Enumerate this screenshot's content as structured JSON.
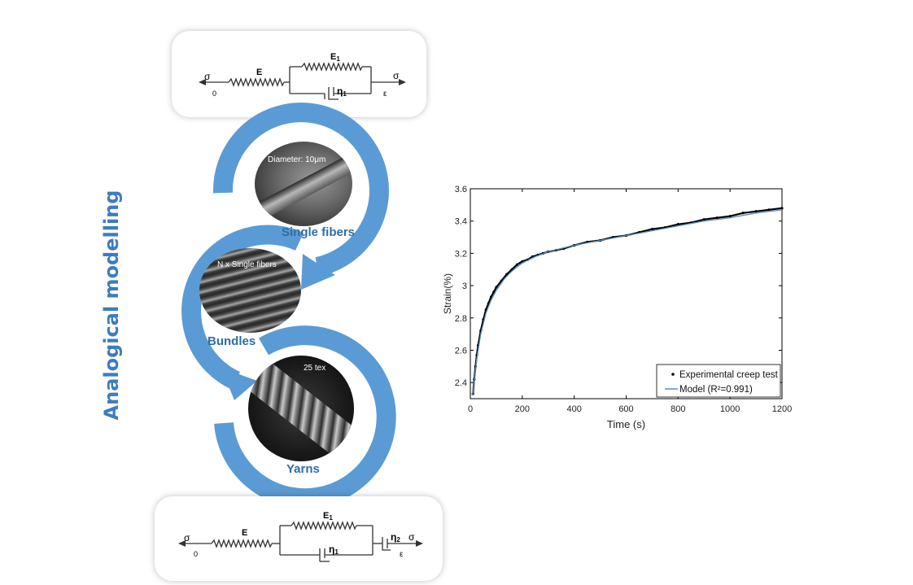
{
  "vertical_title": "Analogical modelling",
  "diagram_top": {
    "sigma_left": "σ",
    "sigma_right": "σ",
    "zero": "0",
    "epsilon": "ε",
    "E": "E",
    "E1": "E",
    "E1_sub": "1",
    "eta1": "η",
    "eta1_sub": "1"
  },
  "diagram_bottom": {
    "sigma_left": "σ",
    "sigma_right": "σ",
    "zero": "0",
    "epsilon": "ε",
    "E": "E",
    "E1": "E",
    "E1_sub": "1",
    "eta1": "η",
    "eta1_sub": "1",
    "eta2": "η",
    "eta2_sub": "2"
  },
  "cycle": {
    "single_fibers": {
      "caption": "Single fibers",
      "image_label": "Diameter: 10μm"
    },
    "bundles": {
      "caption": "Bundles",
      "image_label": "N x Single fibers"
    },
    "yarns": {
      "caption": "Yarns",
      "image_label": "25 tex"
    }
  },
  "colors": {
    "accent": "#5b9bd5",
    "title": "#3d7cc0",
    "caption": "#2e6da8"
  },
  "chart_data": {
    "type": "scatter",
    "xlabel": "Time (s)",
    "ylabel": "Strain(%)",
    "xlim": [
      0,
      1200
    ],
    "ylim": [
      2.3,
      3.6
    ],
    "xticks": [
      0,
      200,
      400,
      600,
      800,
      1000,
      1200
    ],
    "yticks": [
      2.4,
      2.6,
      2.8,
      3,
      3.2,
      3.4,
      3.6
    ],
    "xtick_labels": [
      "0",
      "200",
      "400",
      "600",
      "800",
      "1000",
      "1200"
    ],
    "ytick_labels": [
      "2.4",
      "2.6",
      "2.8",
      "3",
      "3.2",
      "3.4",
      "3.6"
    ],
    "grid": false,
    "legend_position": "bottom-right",
    "series": [
      {
        "name": "Experimental creep test",
        "kind": "points",
        "color": "#000000",
        "x": [
          10,
          15,
          20,
          25,
          30,
          40,
          50,
          60,
          70,
          80,
          90,
          100,
          120,
          140,
          160,
          180,
          200,
          220,
          240,
          260,
          280,
          300,
          330,
          360,
          400,
          450,
          500,
          550,
          600,
          650,
          700,
          750,
          800,
          850,
          900,
          950,
          1000,
          1050,
          1100,
          1150,
          1200
        ],
        "y": [
          2.33,
          2.42,
          2.5,
          2.57,
          2.63,
          2.72,
          2.79,
          2.85,
          2.89,
          2.93,
          2.96,
          2.99,
          3.03,
          3.07,
          3.1,
          3.13,
          3.15,
          3.16,
          3.18,
          3.19,
          3.2,
          3.21,
          3.22,
          3.23,
          3.25,
          3.27,
          3.28,
          3.3,
          3.31,
          3.33,
          3.35,
          3.36,
          3.38,
          3.39,
          3.41,
          3.42,
          3.43,
          3.45,
          3.46,
          3.47,
          3.48
        ]
      },
      {
        "name": "Model (R²=0.991)",
        "kind": "line",
        "color": "#5b8fbf",
        "x": [
          8,
          15,
          25,
          40,
          60,
          80,
          100,
          130,
          160,
          200,
          250,
          300,
          350,
          400,
          500,
          600,
          700,
          800,
          900,
          1000,
          1100,
          1200
        ],
        "y": [
          2.32,
          2.41,
          2.55,
          2.7,
          2.83,
          2.91,
          2.97,
          3.04,
          3.09,
          3.14,
          3.18,
          3.21,
          3.23,
          3.25,
          3.28,
          3.31,
          3.34,
          3.37,
          3.4,
          3.42,
          3.45,
          3.47
        ]
      }
    ]
  }
}
